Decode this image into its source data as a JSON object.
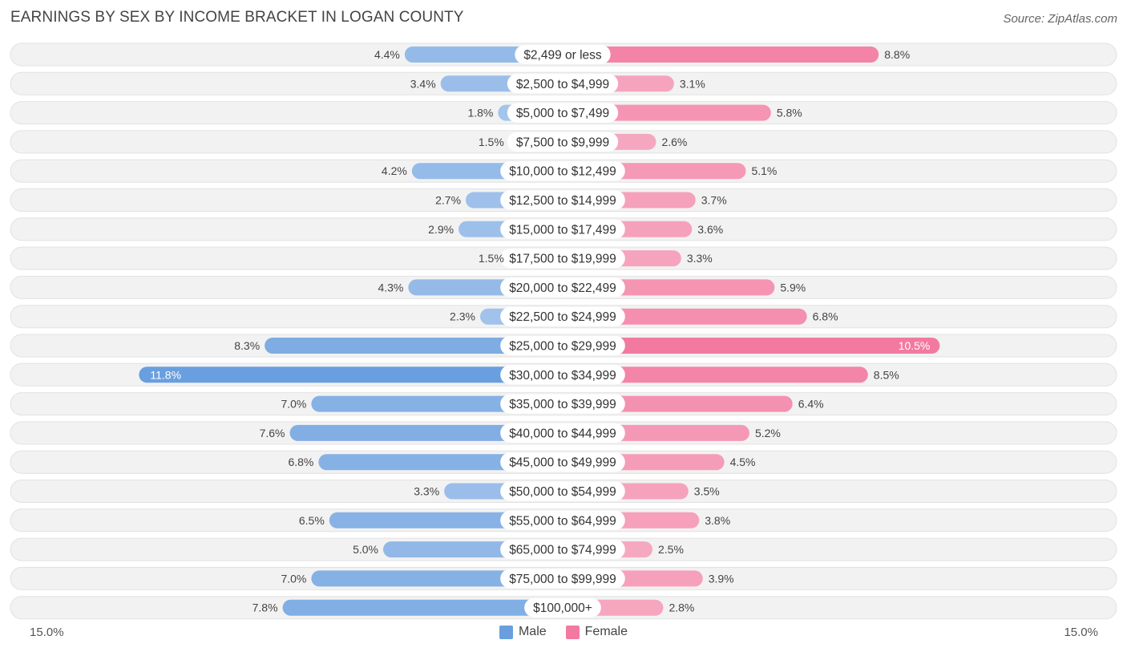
{
  "header": {
    "title": "EARNINGS BY SEX BY INCOME BRACKET IN LOGAN COUNTY",
    "source": "Source: ZipAtlas.com"
  },
  "axis": {
    "left_label": "15.0%",
    "right_label": "15.0%"
  },
  "legend": {
    "male_label": "Male",
    "female_label": "Female"
  },
  "colors": {
    "male": "#6a9fdf",
    "female": "#f27aa0",
    "row_bg": "#f2f2f2",
    "label_text": "#333333"
  },
  "chart_data": {
    "type": "bar",
    "orientation": "horizontal-diverging",
    "title": "EARNINGS BY SEX BY INCOME BRACKET IN LOGAN COUNTY",
    "xlim": [
      -15,
      15
    ],
    "categories": [
      "$2,499 or less",
      "$2,500 to $4,999",
      "$5,000 to $7,499",
      "$7,500 to $9,999",
      "$10,000 to $12,499",
      "$12,500 to $14,999",
      "$15,000 to $17,499",
      "$17,500 to $19,999",
      "$20,000 to $22,499",
      "$22,500 to $24,999",
      "$25,000 to $29,999",
      "$30,000 to $34,999",
      "$35,000 to $39,999",
      "$40,000 to $44,999",
      "$45,000 to $49,999",
      "$50,000 to $54,999",
      "$55,000 to $64,999",
      "$65,000 to $74,999",
      "$75,000 to $99,999",
      "$100,000+"
    ],
    "series": [
      {
        "name": "Male",
        "values": [
          4.4,
          3.4,
          1.8,
          1.5,
          4.2,
          2.7,
          2.9,
          1.5,
          4.3,
          2.3,
          8.3,
          11.8,
          7.0,
          7.6,
          6.8,
          3.3,
          6.5,
          5.0,
          7.0,
          7.8
        ],
        "labels": [
          "4.4%",
          "3.4%",
          "1.8%",
          "1.5%",
          "4.2%",
          "2.7%",
          "2.9%",
          "1.5%",
          "4.3%",
          "2.3%",
          "8.3%",
          "11.8%",
          "7.0%",
          "7.6%",
          "6.8%",
          "3.3%",
          "6.5%",
          "5.0%",
          "7.0%",
          "7.8%"
        ]
      },
      {
        "name": "Female",
        "values": [
          8.8,
          3.1,
          5.8,
          2.6,
          5.1,
          3.7,
          3.6,
          3.3,
          5.9,
          6.8,
          10.5,
          8.5,
          6.4,
          5.2,
          4.5,
          3.5,
          3.8,
          2.5,
          3.9,
          2.8
        ],
        "labels": [
          "8.8%",
          "3.1%",
          "5.8%",
          "2.6%",
          "5.1%",
          "3.7%",
          "3.6%",
          "3.3%",
          "5.9%",
          "6.8%",
          "10.5%",
          "8.5%",
          "6.4%",
          "5.2%",
          "4.5%",
          "3.5%",
          "3.8%",
          "2.5%",
          "3.9%",
          "2.8%"
        ]
      }
    ]
  }
}
